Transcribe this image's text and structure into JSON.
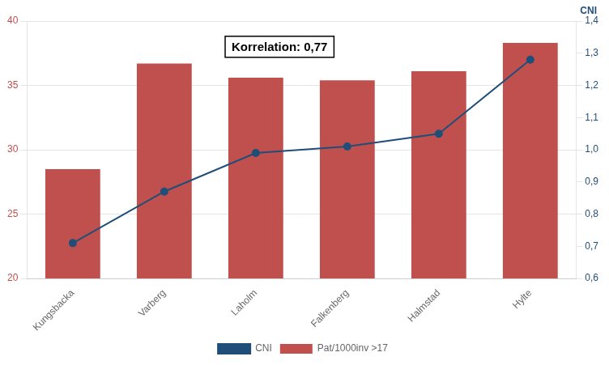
{
  "chart_data": {
    "type": "bar",
    "categories": [
      "Kungsbacka",
      "Varberg",
      "Laholm",
      "Falkenberg",
      "Halmstad",
      "Hylte"
    ],
    "series": [
      {
        "name": "Pat/1000inv >17",
        "type": "bar",
        "color": "#c0504d",
        "values": [
          28.5,
          36.7,
          35.6,
          35.4,
          36.1,
          38.3
        ]
      },
      {
        "name": "CNI",
        "type": "line",
        "color": "#1f4e79",
        "marker": "circle",
        "axis": "y2",
        "values": [
          0.71,
          0.87,
          0.99,
          1.01,
          1.05,
          1.28
        ]
      }
    ],
    "ylim": [
      20,
      40
    ],
    "yticks": [
      20,
      25,
      30,
      35,
      40
    ],
    "y2lim": [
      0.6,
      1.4
    ],
    "y2ticks": [
      {
        "value": 0.6,
        "label": "0,6"
      },
      {
        "value": 0.7,
        "label": "0,7"
      },
      {
        "value": 0.8,
        "label": "0,8"
      },
      {
        "value": 0.9,
        "label": "0,9"
      },
      {
        "value": 1.0,
        "label": "1,0"
      },
      {
        "value": 1.1,
        "label": "1,1"
      },
      {
        "value": 1.2,
        "label": "1,2"
      },
      {
        "value": 1.3,
        "label": "1,3"
      },
      {
        "value": 1.4,
        "label": "1,4"
      }
    ],
    "y2_label": "CNI",
    "annotation": "Korrelation: 0,77",
    "grid": true,
    "legend": "bottom"
  }
}
